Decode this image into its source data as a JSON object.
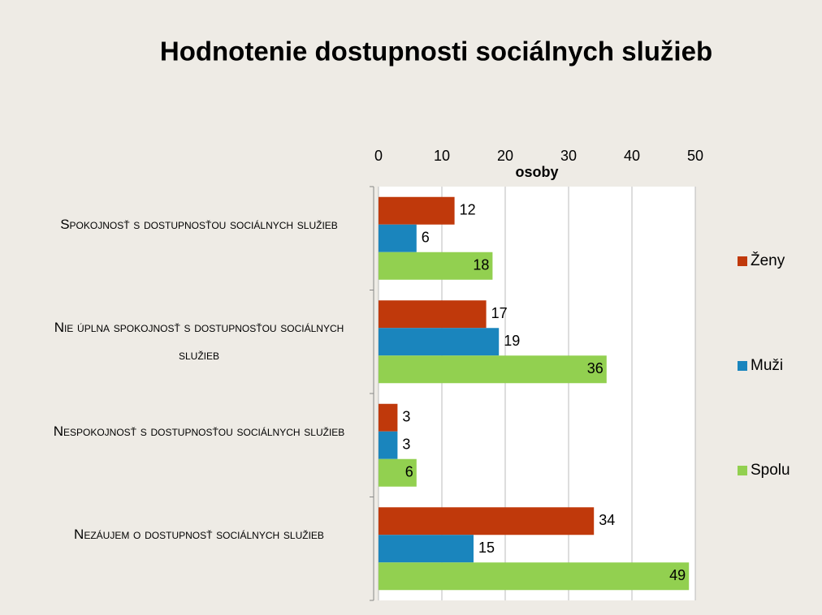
{
  "chart_data": {
    "type": "barh",
    "title": "Hodnotenie dostupnosti sociálnych služieb",
    "x_label": "osoby",
    "categories": [
      "Spokojnosť s dostupnosťou sociálnych služieb",
      "Nie úplna spokojnosť s dostupnosťou sociálnych služieb",
      "Nespokojnosť s dostupnosťou sociálnych služieb",
      "Nezáujem o  dostupnosť sociálnych služieb"
    ],
    "series": [
      {
        "name": "Ženy",
        "color": "#c0390b",
        "values": [
          12,
          17,
          3,
          34
        ]
      },
      {
        "name": "Muži",
        "color": "#1a85bd",
        "values": [
          6,
          19,
          3,
          15
        ]
      },
      {
        "name": "Spolu",
        "color": "#92d050",
        "values": [
          18,
          36,
          6,
          49
        ]
      }
    ],
    "xlim": [
      0,
      50
    ],
    "xticks": [
      0,
      10,
      20,
      30,
      40,
      50
    ],
    "grid": true,
    "legend": "right"
  }
}
